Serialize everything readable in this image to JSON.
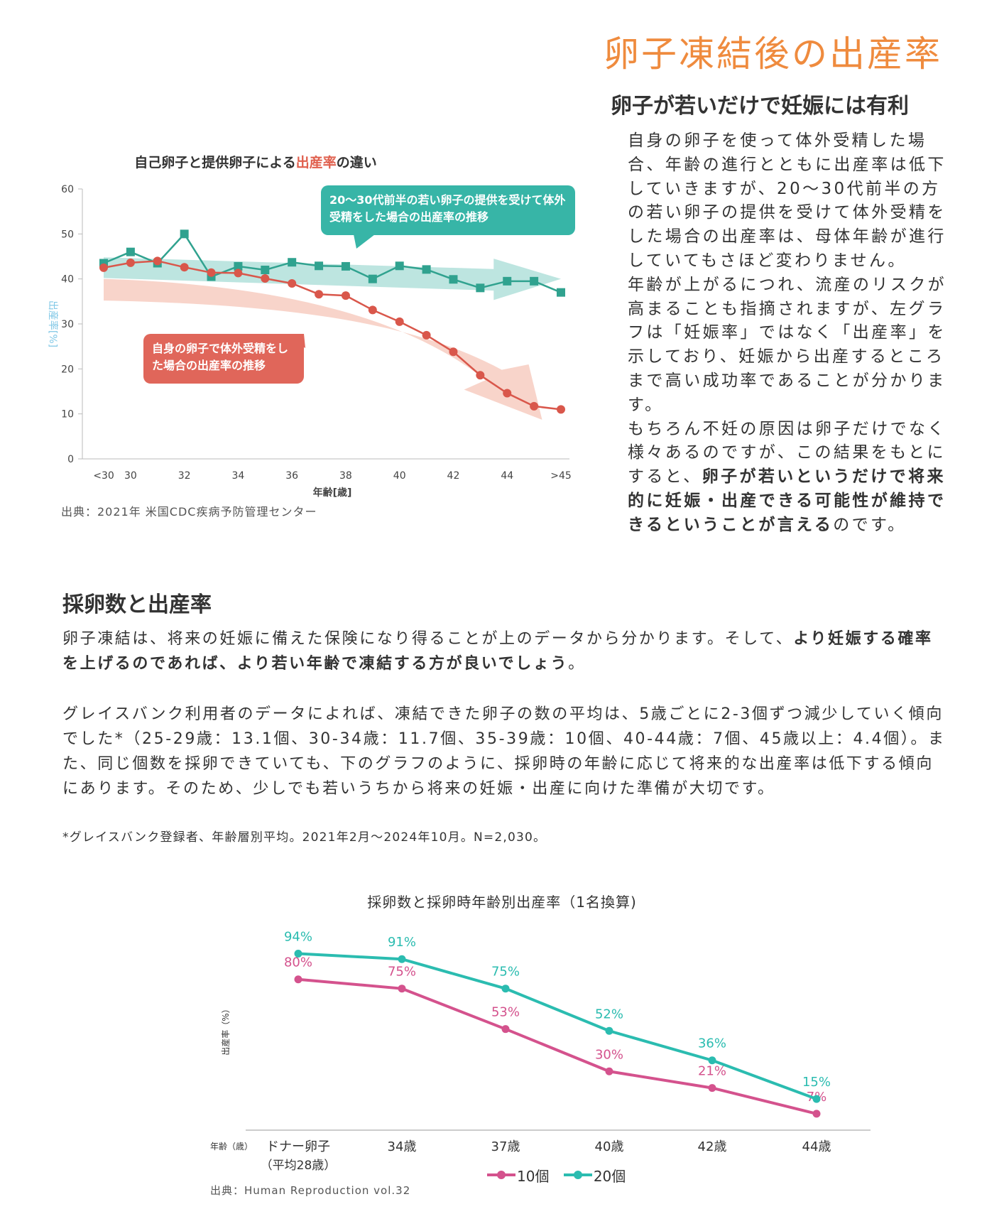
{
  "page": {
    "title": "卵子凍結後の出産率",
    "section1": {
      "heading": "卵子が若いだけで妊娠には有利",
      "p1": "自身の卵子を使って体外受精した場合、年齢の進行とともに出産率は低下していきますが、20〜30代前半の方の若い卵子の提供を受けて体外受精をした場合の出産率は、母体年齢が進行していてもさほど変わりません。",
      "p2": "年齢が上がるにつれ、流産のリスクが高まることも指摘されますが、左グラフは「妊娠率」ではなく「出産率」を示しており、妊娠から出産するところまで高い成功率であることが分かります。",
      "p3_a": "もちろん不妊の原因は卵子だけでなく様々あるのですが、この結果をもとにすると、",
      "p3_b": "卵子が若いというだけで将来的に妊娠・出産できる可能性が維持できるということが言える",
      "p3_c": "のです。"
    },
    "section2": {
      "heading": "採卵数と出産率",
      "p1_a": "卵子凍結は、将来の妊娠に備えた保険になり得ることが上のデータから分かります。そして、",
      "p1_b": "より妊娠する確率を上げるのであれば、より若い年齢で凍結する方が良いでしょう",
      "p1_c": "。",
      "p2": "グレイスバンク利用者のデータによれば、凍結できた卵子の数の平均は、5歳ごとに2-3個ずつ減少していく傾向でした*（25-29歳：13.1個、30-34歳：11.7個、35-39歳：10個、40-44歳：7個、45歳以上：4.4個）。また、同じ個数を採卵できていても、下のグラフのように、採卵時の年齢に応じて将来的な出産率は低下する傾向にあります。そのため、少しでも若いうちから将来の妊娠・出産に向けた準備が大切です。",
      "footnote": "*グレイスバンク登録者、年齢層別平均。2021年2月〜2024年10月。N=2,030。"
    }
  },
  "chart_data": [
    {
      "type": "line",
      "title_prefix": "自己卵子と提供卵子による",
      "title_highlight": "出産率",
      "title_suffix": "の違い",
      "xlabel": "年齢[歳]",
      "ylabel": "出産率[%]",
      "ylim": [
        0,
        60
      ],
      "yticks": [
        0,
        10,
        20,
        30,
        40,
        50,
        60
      ],
      "x_ticks": [
        "<30",
        "30",
        "32",
        "34",
        "36",
        "38",
        "40",
        "42",
        "44",
        ">45"
      ],
      "x": [
        29,
        30,
        31,
        32,
        33,
        34,
        35,
        36,
        37,
        38,
        39,
        40,
        41,
        42,
        43,
        44,
        45,
        46
      ],
      "series": [
        {
          "name": "20〜30代前半の若い卵子の提供を受けて体外受精をした場合の出産率の推移",
          "color": "#30a28f",
          "marker": "square",
          "values": [
            43.5,
            46,
            43.5,
            50,
            40.5,
            42.8,
            42,
            43.7,
            42.9,
            42.8,
            40,
            42.9,
            42.1,
            39.9,
            38,
            39.5,
            39.5,
            37
          ]
        },
        {
          "name": "自身の卵子で体外受精をした場合の出産率の推移",
          "color": "#d9574b",
          "marker": "circle",
          "values": [
            42.5,
            43.6,
            44,
            42.6,
            41.4,
            41.3,
            40.1,
            39,
            36.6,
            36.3,
            33.1,
            30.5,
            27.5,
            23.8,
            18.6,
            14.6,
            11.7,
            11
          ]
        }
      ],
      "source": "出典：2021年 米国CDC疾病予防管理センター"
    },
    {
      "type": "line",
      "title": "採卵数と採卵時年齢別出産率（1名換算)",
      "xlabel": "年齢（歳）",
      "ylabel": "出産率（%）",
      "categories": [
        "ドナー卵子",
        "34歳",
        "37歳",
        "40歳",
        "42歳",
        "44歳"
      ],
      "category_sub": "（平均28歳）",
      "ylim": [
        0,
        100
      ],
      "series": [
        {
          "name": "10個",
          "color": "#d4528d",
          "values": [
            80,
            75,
            53,
            30,
            21,
            7
          ]
        },
        {
          "name": "20個",
          "color": "#2bbcb0",
          "values": [
            94,
            91,
            75,
            52,
            36,
            15
          ]
        }
      ],
      "value_labels": {
        "10個": [
          "80%",
          "75%",
          "53%",
          "30%",
          "21%",
          "7%"
        ],
        "20個": [
          "94%",
          "91%",
          "75%",
          "52%",
          "36%",
          "15%"
        ]
      },
      "source": "出典：Human Reproduction vol.32"
    }
  ]
}
